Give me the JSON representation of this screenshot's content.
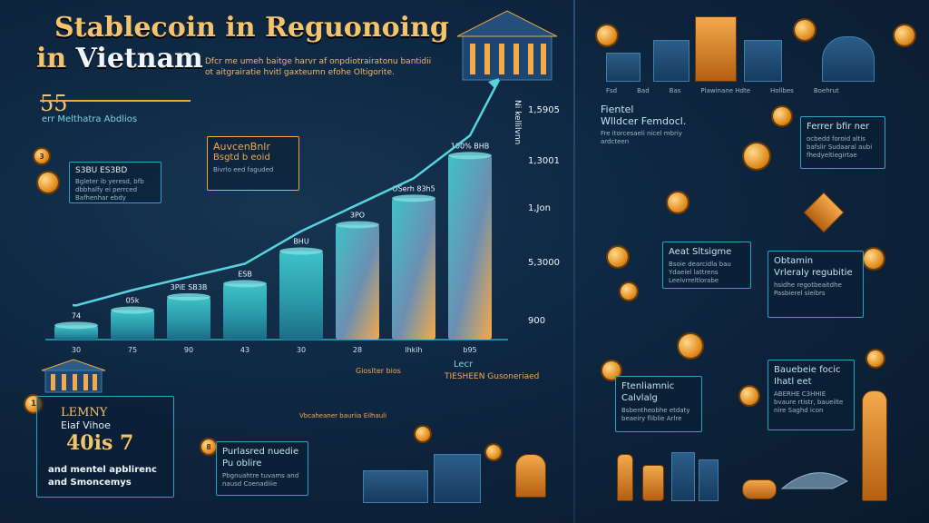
{
  "header": {
    "title_line1": "Stablecoin in Reguonoing",
    "title_line2_prefix": "in",
    "title_line2_word": "Vietnam",
    "subtitle": "Dfcr me umeh baitge harvr af onpdiotrairatonu bantidii ot aitgrairatie hvitl gaxteumn efohe Oltigorite."
  },
  "left_stat": {
    "value": "55",
    "label": "err Melthatra Abdlios"
  },
  "callout_top": {
    "title": "AuvcenBnlr",
    "subtitle": "Bsgtd b eoid",
    "note": "Bivrlo eed faguded"
  },
  "coin_box": {
    "badge": "3",
    "title": "S3BU ES3BD",
    "text": "Bgleter ib yeresd, bfb dbbhalfy ei perrced Bafhenhar ebdy"
  },
  "chart_data": {
    "type": "bar",
    "categories": [
      "30",
      "75",
      "90",
      "43",
      "30",
      "28",
      "lhkih",
      "b95"
    ],
    "values": [
      14,
      29,
      42,
      55,
      87,
      113,
      139,
      181
    ],
    "value_labels": [
      "74",
      "05k",
      "3PiE SB3B",
      "ESB",
      "BHU",
      "3PO",
      "OSerh 83h5",
      "100% BHB"
    ],
    "yticks": [
      "1,5905",
      "1,3001",
      "1,Jon",
      "5,3000",
      "900"
    ],
    "ylabel": "Ni kellilvnn",
    "ylim": [
      0,
      200
    ]
  },
  "bottom_left": {
    "badge": "1",
    "line1": "LEMNY",
    "line2": "Eiaf Vihoe",
    "big": "40is 7",
    "foot1": "and mentel apblirenc",
    "foot2": "and Smoncemys"
  },
  "bottom_mid": {
    "badge": "8",
    "title1": "Purlasred nuedie",
    "title2": "Pu oblire",
    "text": "Pbgnuahtre tuvams and nausd Coenadiiie"
  },
  "bottom_mid_labels": {
    "top": "Vbcaheaner bauriia Eilhauli",
    "right": "Lecr",
    "right2": "TIESHEEN Gusoneriaed",
    "mid": "Gioslter bios"
  },
  "right_panel": {
    "top_labels": [
      "Fsd",
      "Bad",
      "Bas",
      "Plawinane Hdte",
      "Hollbes",
      "Boehrut"
    ],
    "card1": {
      "title1": "Fientel",
      "title2": "Wlldcer Femdocl.",
      "text": "Fre itorcesaeli nicel mbriy ardcteen"
    },
    "card2": {
      "title1": "Ferrer bfir ner",
      "text": "ocbedd foroid altis bafslir Sudaaral aubi fhedyeltiegirtae"
    },
    "card3": {
      "title1": "Aeat Sltsigme",
      "text": "Bsoie dearcidla bau Ydaeiel lattrens Leeivrreltlorabe"
    },
    "card4": {
      "title1": "Obtamin",
      "title2": "Vrleraly regubitie",
      "text": "hsidhe regotbeaitdhe Pasbierel sieibrs"
    },
    "card5": {
      "title1": "Ftenliamnic",
      "title2": "Calvlalg",
      "text": "Bsbentheobhe etdaty beaeiry fliblie Arlre"
    },
    "card6": {
      "title1": "Bauebeie focic",
      "title2": "Ihatl eet",
      "text": "ABERHE C3HHIE bvaure rtistr, baueilte nire Saghd icon"
    }
  },
  "colors": {
    "accent": "#f3a94c",
    "teal": "#2fa3c7",
    "background": "#0e2640"
  }
}
